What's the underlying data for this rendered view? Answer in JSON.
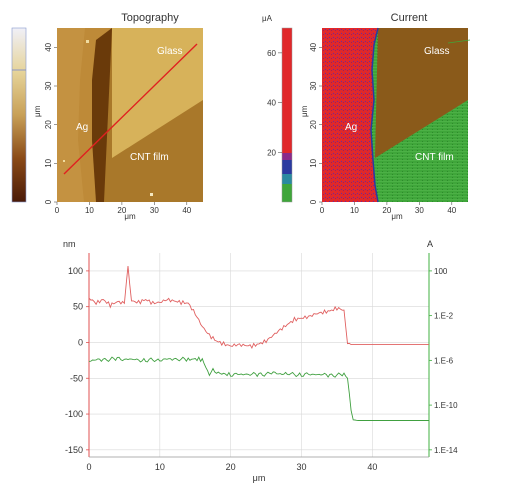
{
  "figure": {
    "topography": {
      "title": "Topography",
      "labels": {
        "glass": "Glass",
        "ag": "Ag",
        "cnt": "CNT film"
      },
      "colorbar_unit": "μm",
      "axis_unit": "μm",
      "x_ticks": [
        0,
        10,
        20,
        30,
        40
      ],
      "y_ticks": [
        0,
        10,
        20,
        30,
        40
      ]
    },
    "current": {
      "title": "Current",
      "labels": {
        "glass": "Glass",
        "ag": "Ag",
        "cnt": "CNT film"
      },
      "colorbar_unit": "μA",
      "colorbar_ticks": [
        20,
        40,
        60
      ],
      "axis_unit": "μm",
      "x_ticks": [
        0,
        10,
        20,
        30,
        40
      ],
      "y_ticks": [
        0,
        10,
        20,
        30,
        40
      ]
    },
    "profile": {
      "left_unit": "nm",
      "right_unit": "A",
      "x_label": "μm"
    }
  },
  "colors": {
    "topo_dark": "#6a3a0a",
    "topo_mid": "#a9782a",
    "topo_light": "#d7b25a",
    "current_red": "#e0282a",
    "current_green": "#3fa63a",
    "current_glass": "#8a5a1a",
    "height_line": "#e06060",
    "current_line": "#40a040",
    "left_axis": "#e05050",
    "right_axis": "#40b040"
  },
  "chart_data": [
    {
      "type": "heatmap",
      "title": "Topography",
      "xlabel": "μm",
      "ylabel": "μm",
      "xlim": [
        0,
        45
      ],
      "ylim": [
        0,
        45
      ],
      "x_ticks": [
        0,
        10,
        20,
        30,
        40
      ],
      "y_ticks": [
        0,
        10,
        20,
        30,
        40
      ],
      "regions": [
        "Glass",
        "Ag",
        "CNT film"
      ]
    },
    {
      "type": "heatmap",
      "title": "Current",
      "xlabel": "μm",
      "ylabel": "μm",
      "xlim": [
        0,
        45
      ],
      "ylim": [
        0,
        45
      ],
      "x_ticks": [
        0,
        10,
        20,
        30,
        40
      ],
      "y_ticks": [
        0,
        10,
        20,
        30,
        40
      ],
      "colorbar_unit": "μA",
      "colorbar_ticks": [
        20,
        40,
        60
      ],
      "regions": [
        "Glass",
        "Ag",
        "CNT film"
      ]
    },
    {
      "type": "line",
      "xlabel": "μm",
      "ylabel": "nm",
      "y2label": "A",
      "xlim": [
        0,
        48
      ],
      "ylim": [
        -160,
        125
      ],
      "x_ticks": [
        0,
        10,
        20,
        30,
        40
      ],
      "y_ticks": [
        -150,
        -100,
        -50,
        0,
        50,
        100
      ],
      "y2_ticks": [
        "100",
        "1.E-2",
        "1.E-6",
        "1.E-10",
        "1.E-14"
      ],
      "series": [
        {
          "axis": "left",
          "x": [
            0,
            1,
            2,
            3,
            4,
            5,
            5.5,
            6,
            7,
            8,
            9,
            10,
            11,
            12,
            13,
            14,
            15,
            16,
            17,
            18,
            19,
            20,
            21,
            22,
            23,
            24,
            25,
            26,
            27,
            28,
            29,
            30,
            31,
            32,
            33,
            34,
            35,
            36,
            36.5,
            37,
            38,
            40,
            42,
            44,
            46,
            48
          ],
          "values": [
            62,
            55,
            60,
            52,
            57,
            55,
            105,
            58,
            56,
            60,
            55,
            56,
            60,
            58,
            56,
            55,
            40,
            22,
            10,
            2,
            -2,
            -5,
            -3,
            -4,
            -5,
            -2,
            2,
            10,
            18,
            25,
            32,
            34,
            36,
            40,
            42,
            44,
            48,
            45,
            0,
            -3,
            -3,
            -3,
            -3,
            -3,
            -3,
            -3
          ]
        },
        {
          "axis": "right",
          "x": [
            0,
            2,
            4,
            6,
            8,
            10,
            12,
            14,
            15,
            16,
            16.5,
            17,
            17.5,
            18,
            19,
            20,
            22,
            24,
            26,
            28,
            30,
            32,
            34,
            36,
            36.5,
            37,
            37.3,
            38,
            40,
            42,
            44,
            46,
            48
          ],
          "values": [
            -25,
            -24,
            -23,
            -24,
            -25,
            -24,
            -23,
            -24,
            -23,
            -24,
            -35,
            -48,
            -38,
            -42,
            -44,
            -45,
            -44,
            -45,
            -43,
            -44,
            -45,
            -44,
            -46,
            -45,
            -50,
            -95,
            -108,
            -109,
            -109,
            -109,
            -109,
            -109,
            -109
          ]
        }
      ]
    }
  ]
}
